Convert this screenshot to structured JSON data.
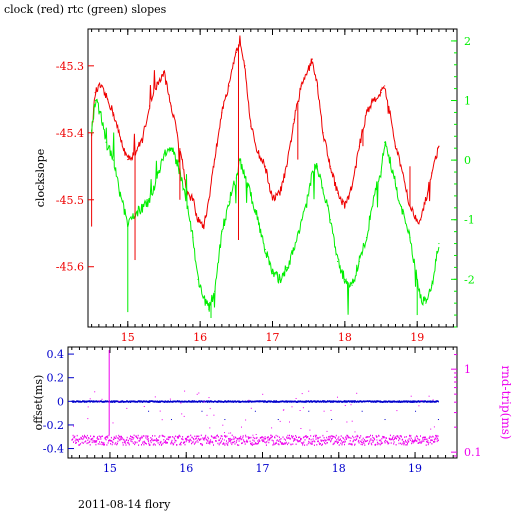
{
  "title": "clock (red) rtc (green) slopes",
  "footer": "2011-08-14 flory",
  "colors": {
    "clock": "#ee0000",
    "rtc": "#00ee00",
    "offset": "#0000cc",
    "rndtrip": "#ee00ee",
    "axis": "#000000"
  },
  "chart_data": [
    {
      "type": "line",
      "ylabel": "clockslope",
      "y2label": "",
      "xlim": [
        14.45,
        19.55
      ],
      "ylim": [
        -45.69,
        -45.245
      ],
      "y2lim": [
        -2.8,
        2.2
      ],
      "xticks": [
        15,
        16,
        17,
        18,
        19
      ],
      "xtick_labels": [
        "15",
        "16",
        "17",
        "18",
        "19"
      ],
      "yticks": [
        -45.3,
        -45.4,
        -45.5,
        -45.6
      ],
      "ytick_labels": [
        "-45.3",
        "-45.4",
        "-45.5",
        "-45.6"
      ],
      "y2ticks": [
        2,
        1,
        0,
        -1,
        -2
      ],
      "y2tick_labels": [
        "2",
        "1",
        "0",
        "-1",
        "-2"
      ],
      "grid": false,
      "series": [
        {
          "color": "clock",
          "axis": "left",
          "x": [
            14.5,
            14.55,
            14.62,
            14.72,
            14.8,
            14.9,
            15.0,
            15.1,
            15.2,
            15.3,
            15.4,
            15.5,
            15.6,
            15.68,
            15.75,
            15.82,
            15.9,
            15.97,
            16.05,
            16.12,
            16.2,
            16.3,
            16.4,
            16.5,
            16.55,
            16.62,
            16.7,
            16.8,
            16.9,
            17.0,
            17.1,
            17.2,
            17.3,
            17.4,
            17.5,
            17.55,
            17.62,
            17.7,
            17.8,
            17.9,
            18.0,
            18.1,
            18.2,
            18.3,
            18.4,
            18.5,
            18.55,
            18.62,
            18.7,
            18.8,
            18.9,
            19.0,
            19.05,
            19.12,
            19.2,
            19.3
          ],
          "y": [
            -45.4,
            -45.34,
            -45.33,
            -45.35,
            -45.37,
            -45.41,
            -45.44,
            -45.43,
            -45.41,
            -45.36,
            -45.33,
            -45.31,
            -45.36,
            -45.4,
            -45.44,
            -45.49,
            -45.5,
            -45.53,
            -45.54,
            -45.5,
            -45.44,
            -45.37,
            -45.33,
            -45.28,
            -45.26,
            -45.3,
            -45.39,
            -45.43,
            -45.45,
            -45.5,
            -45.49,
            -45.45,
            -45.38,
            -45.33,
            -45.3,
            -45.29,
            -45.33,
            -45.4,
            -45.45,
            -45.49,
            -45.51,
            -45.48,
            -45.42,
            -45.37,
            -45.35,
            -45.34,
            -45.33,
            -45.37,
            -45.42,
            -45.46,
            -45.51,
            -45.53,
            -45.53,
            -45.5,
            -45.46,
            -45.42
          ]
        },
        {
          "color": "rtc",
          "axis": "right",
          "x": [
            14.5,
            14.55,
            14.62,
            14.7,
            14.8,
            14.9,
            15.0,
            15.1,
            15.2,
            15.3,
            15.4,
            15.5,
            15.6,
            15.7,
            15.8,
            15.9,
            15.97,
            16.05,
            16.12,
            16.2,
            16.3,
            16.4,
            16.5,
            16.55,
            16.62,
            16.7,
            16.8,
            16.9,
            17.0,
            17.1,
            17.2,
            17.3,
            17.4,
            17.5,
            17.55,
            17.62,
            17.7,
            17.8,
            17.9,
            18.0,
            18.1,
            18.2,
            18.3,
            18.4,
            18.5,
            18.55,
            18.62,
            18.7,
            18.8,
            18.9,
            19.0,
            19.05,
            19.12,
            19.2,
            19.3
          ],
          "y": [
            0.5,
            1.0,
            0.8,
            0.3,
            0.0,
            -0.6,
            -1.1,
            -0.9,
            -0.8,
            -0.7,
            -0.3,
            0.1,
            0.2,
            -0.1,
            -0.6,
            -1.3,
            -2.0,
            -2.3,
            -2.5,
            -2.2,
            -1.2,
            -0.7,
            -0.3,
            0.0,
            -0.3,
            -0.6,
            -1.0,
            -1.5,
            -1.9,
            -2.0,
            -1.8,
            -1.5,
            -1.0,
            -0.6,
            -0.2,
            -0.1,
            -0.5,
            -1.0,
            -1.7,
            -2.0,
            -2.1,
            -1.7,
            -1.3,
            -0.6,
            -0.2,
            0.3,
            0.0,
            -0.4,
            -0.9,
            -1.3,
            -2.0,
            -2.3,
            -2.4,
            -2.1,
            -1.4
          ]
        }
      ]
    },
    {
      "type": "scatter",
      "ylabel": "offset(ms)",
      "y2label": "rnd-trip(ms)",
      "xlim": [
        14.45,
        19.55
      ],
      "ylim": [
        -0.48,
        0.46
      ],
      "y2log": true,
      "y2lim": [
        0.085,
        1.85
      ],
      "xticks": [
        15,
        16,
        17,
        18,
        19
      ],
      "xtick_labels": [
        "15",
        "16",
        "17",
        "18",
        "19"
      ],
      "yticks": [
        0.4,
        0.2,
        0,
        -0.2,
        -0.4
      ],
      "ytick_labels": [
        "0.4",
        "0.2",
        "0",
        "-0.2",
        "-0.4"
      ],
      "y2ticks": [
        1,
        0.1
      ],
      "y2tick_labels": [
        "1",
        "0.1"
      ],
      "grid": false,
      "series": [
        {
          "color": "offset",
          "axis": "left",
          "x": [
            14.5,
            15.5,
            16.5,
            17.5,
            18.5,
            19.3
          ],
          "y": [
            0.0,
            0.0,
            0.0,
            0.0,
            0.0,
            0.0
          ]
        },
        {
          "color": "rndtrip",
          "axis": "right",
          "x": [
            14.5,
            15.0,
            15.5,
            16.0,
            16.5,
            17.0,
            17.5,
            18.0,
            18.5,
            19.0,
            19.3
          ],
          "y": [
            0.14,
            0.14,
            0.14,
            0.14,
            0.14,
            0.14,
            0.14,
            0.14,
            0.14,
            0.14,
            0.14
          ]
        }
      ]
    }
  ]
}
